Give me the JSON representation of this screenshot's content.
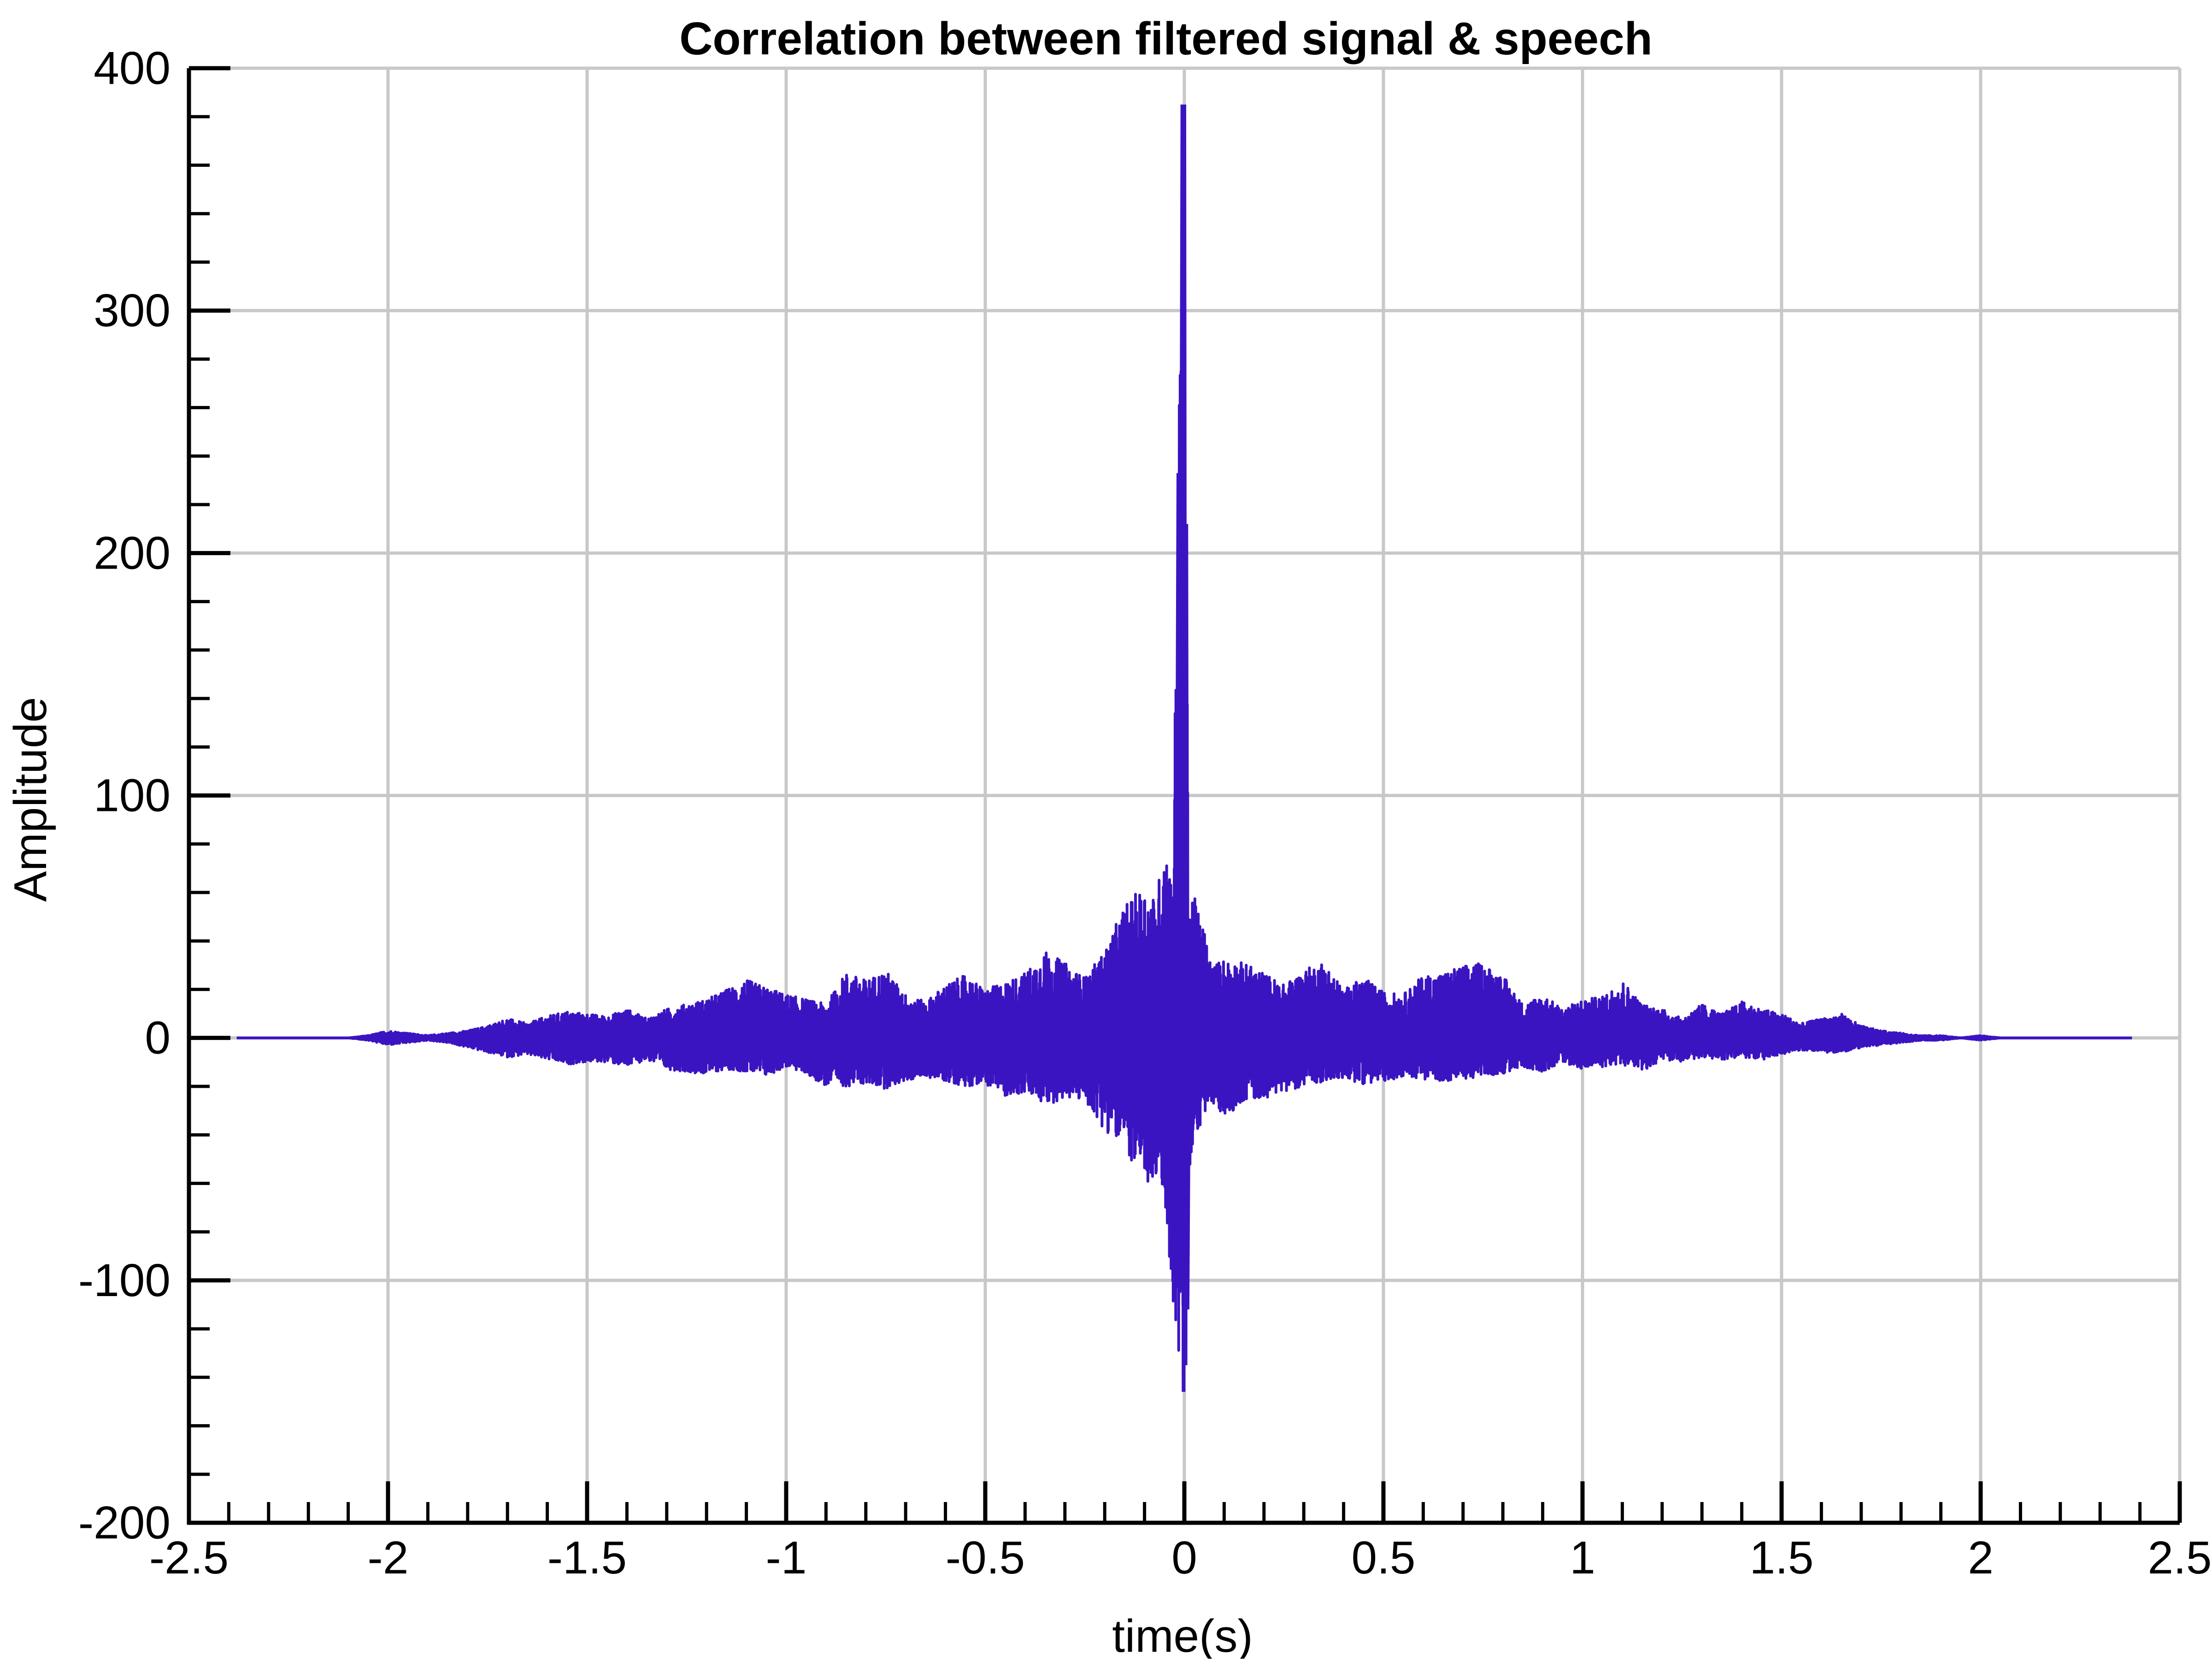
{
  "chart_data": {
    "type": "line",
    "title": "Correlation between filtered signal & speech",
    "xlabel": "time(s)",
    "ylabel": "Amplitude",
    "xlim": [
      -2.5,
      2.5
    ],
    "ylim": [
      -200,
      400
    ],
    "xticks": [
      -2.5,
      -2,
      -1.5,
      -1,
      -0.5,
      0,
      0.5,
      1,
      1.5,
      2,
      2.5
    ],
    "xtick_labels": [
      "-2.5",
      "-2",
      "-1.5",
      "-1",
      "-0.5",
      "0",
      "0.5",
      "1",
      "1.5",
      "2",
      "2.5"
    ],
    "yticks": [
      -200,
      -100,
      0,
      100,
      200,
      300,
      400
    ],
    "ytick_labels": [
      "-200",
      "-100",
      "0",
      "100",
      "200",
      "300",
      "400"
    ],
    "grid": true,
    "series": [
      {
        "color": "#3b14c2",
        "x": [
          -2.38,
          -2.1,
          -2.05,
          -2.0,
          -1.95,
          -1.9,
          -1.85,
          -1.8,
          -1.75,
          -1.7,
          -1.65,
          -1.6,
          -1.55,
          -1.5,
          -1.45,
          -1.4,
          -1.35,
          -1.3,
          -1.25,
          -1.2,
          -1.15,
          -1.1,
          -1.05,
          -1.0,
          -0.95,
          -0.9,
          -0.85,
          -0.8,
          -0.75,
          -0.7,
          -0.65,
          -0.6,
          -0.55,
          -0.5,
          -0.45,
          -0.4,
          -0.35,
          -0.3,
          -0.25,
          -0.2,
          -0.15,
          -0.1,
          -0.07,
          -0.05,
          -0.03,
          -0.015,
          -0.005,
          0.0,
          0.005,
          0.01,
          0.02,
          0.03,
          0.05,
          0.07,
          0.1,
          0.15,
          0.2,
          0.25,
          0.3,
          0.35,
          0.4,
          0.45,
          0.5,
          0.55,
          0.6,
          0.65,
          0.7,
          0.75,
          0.8,
          0.85,
          0.9,
          0.95,
          1.0,
          1.05,
          1.1,
          1.15,
          1.2,
          1.25,
          1.3,
          1.35,
          1.4,
          1.45,
          1.5,
          1.55,
          1.6,
          1.65,
          1.7,
          1.75,
          1.8,
          1.85,
          1.9,
          1.95,
          2.0,
          2.05,
          2.1,
          2.38
        ],
        "upper": [
          0,
          0,
          1,
          3,
          2,
          1,
          2,
          3,
          5,
          8,
          6,
          9,
          11,
          10,
          9,
          12,
          8,
          12,
          14,
          16,
          20,
          24,
          21,
          18,
          16,
          14,
          27,
          24,
          28,
          18,
          15,
          22,
          26,
          20,
          23,
          27,
          36,
          31,
          25,
          36,
          55,
          63,
          57,
          86,
          63,
          233,
          385,
          385,
          212,
          64,
          62,
          55,
          45,
          30,
          33,
          31,
          27,
          22,
          28,
          32,
          20,
          25,
          19,
          18,
          26,
          27,
          30,
          31,
          26,
          14,
          18,
          12,
          16,
          17,
          24,
          14,
          12,
          8,
          14,
          10,
          15,
          12,
          10,
          6,
          8,
          10,
          5,
          3,
          2,
          1,
          1,
          0,
          1,
          0,
          0,
          0
        ],
        "lower": [
          0,
          0,
          -1,
          -3,
          -2,
          -1,
          -2,
          -4,
          -6,
          -8,
          -7,
          -9,
          -11,
          -10,
          -10,
          -12,
          -9,
          -13,
          -14,
          -15,
          -13,
          -14,
          -16,
          -12,
          -15,
          -20,
          -20,
          -19,
          -21,
          -18,
          -16,
          -18,
          -20,
          -19,
          -24,
          -23,
          -28,
          -25,
          -26,
          -38,
          -45,
          -62,
          -60,
          -68,
          -105,
          -146,
          -135,
          -120,
          -112,
          -58,
          -50,
          -40,
          -32,
          -28,
          -33,
          -26,
          -25,
          -22,
          -20,
          -18,
          -17,
          -19,
          -18,
          -16,
          -17,
          -18,
          -17,
          -16,
          -15,
          -12,
          -14,
          -10,
          -13,
          -12,
          -11,
          -14,
          -9,
          -10,
          -8,
          -9,
          -8,
          -9,
          -7,
          -5,
          -6,
          -6,
          -4,
          -3,
          -2,
          -1,
          -1,
          0,
          -1,
          0,
          0,
          0
        ]
      }
    ]
  }
}
